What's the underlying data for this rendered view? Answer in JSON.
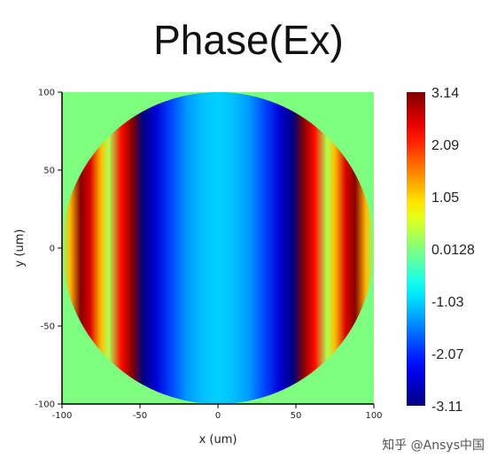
{
  "chart_data": {
    "type": "heatmap",
    "title": "Phase(Ex)",
    "xlabel": "x (um)",
    "ylabel": "y (um)",
    "xlim": [
      -100,
      100
    ],
    "ylim": [
      -100,
      100
    ],
    "x_ticks": [
      "-100",
      "-50",
      "0",
      "50",
      "100"
    ],
    "y_ticks": [
      "100",
      "50",
      "0",
      "-50",
      "-100"
    ],
    "aperture_radius": 100,
    "background_value": 0.0128,
    "phase_profile": {
      "x": [
        -100,
        -95,
        -88,
        -82,
        -75,
        -70,
        -62,
        -55,
        -48,
        -40,
        -30,
        -20,
        -10,
        0,
        10,
        20,
        30,
        40,
        48,
        55,
        62,
        70,
        75,
        82,
        88,
        95,
        100
      ],
      "phase": [
        0.0,
        1.2,
        3.1,
        2.6,
        1.2,
        0.3,
        2.3,
        3.1,
        -3.1,
        -2.6,
        -1.9,
        -1.4,
        -1.15,
        -1.05,
        -1.15,
        -1.4,
        -1.9,
        -2.6,
        -3.1,
        3.1,
        2.3,
        0.3,
        1.2,
        2.6,
        3.1,
        1.2,
        0.0
      ]
    },
    "colorbar": {
      "colormap": "jet",
      "min": -3.11,
      "max": 3.14,
      "labels": [
        "3.14",
        "2.09",
        "1.05",
        "0.0128",
        "-1.03",
        "-2.07",
        "-3.11"
      ]
    }
  },
  "watermark": "知乎 @Ansys中国"
}
